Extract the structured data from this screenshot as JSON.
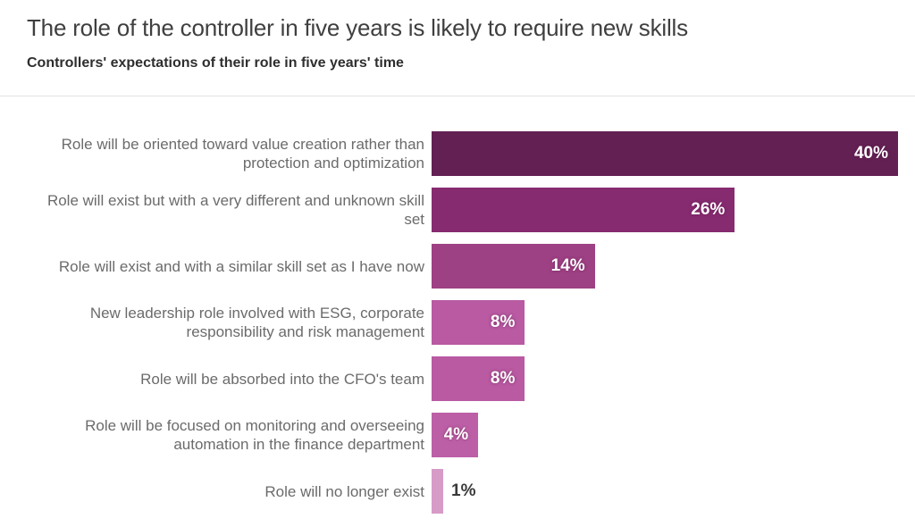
{
  "page": {
    "title": "The role of the controller in five years is likely to require new skills",
    "subtitle": "Controllers' expectations of their role in five years' time"
  },
  "chart_data": {
    "type": "bar",
    "orientation": "horizontal",
    "title": "The role of the controller in five years is likely to require new skills",
    "subtitle": "Controllers' expectations of their role in five years' time",
    "xlabel": "",
    "ylabel": "",
    "xlim": [
      0,
      40
    ],
    "grid": false,
    "legend": false,
    "unit": "%",
    "categories": [
      "Role will be oriented toward value creation rather than protection and optimization",
      "Role will exist but with a very different and unknown skill set",
      "Role will exist and with a similar skill set as I have now",
      "New leadership role involved with ESG, corporate responsibility and risk management",
      "Role will be absorbed into the CFO's team",
      "Role will be focused on monitoring and overseeing automation in the finance department",
      "Role will no longer exist"
    ],
    "values": [
      40,
      26,
      14,
      8,
      8,
      4,
      1
    ],
    "value_labels": [
      "40%",
      "26%",
      "14%",
      "8%",
      "8%",
      "4%",
      "1%"
    ],
    "bar_colors": [
      "#632053",
      "#872b70",
      "#9e4084",
      "#b95aa2",
      "#b95aa2",
      "#bd5fa6",
      "#d79bc8"
    ],
    "label_color": "#6b6b6b",
    "value_label_inside_color": "#ffffff",
    "value_label_outside_color": "#3a3a3a"
  }
}
